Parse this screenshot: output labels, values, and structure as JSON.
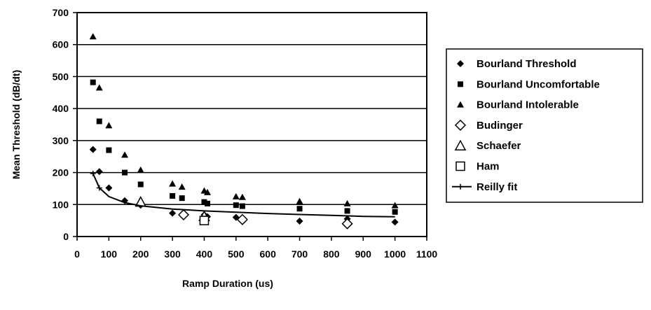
{
  "chart_data": {
    "type": "scatter",
    "title": "",
    "xlabel": "Ramp Duration (us)",
    "ylabel": "Mean Threshold (dB/dt)",
    "xlim": [
      0,
      1100
    ],
    "ylim": [
      0,
      700
    ],
    "x_ticks": [
      0,
      100,
      200,
      300,
      400,
      500,
      600,
      700,
      800,
      900,
      1000,
      1100
    ],
    "y_ticks": [
      0,
      100,
      200,
      300,
      400,
      500,
      600,
      700
    ],
    "grid": "horizontal",
    "legend_position": "right",
    "series": [
      {
        "name": "Bourland Threshold",
        "marker": "diamond-filled",
        "color": "#000000",
        "points": [
          [
            50,
            272
          ],
          [
            70,
            203
          ],
          [
            100,
            152
          ],
          [
            150,
            112
          ],
          [
            200,
            98
          ],
          [
            300,
            73
          ],
          [
            400,
            68
          ],
          [
            410,
            62
          ],
          [
            500,
            60
          ],
          [
            700,
            48
          ],
          [
            850,
            55
          ],
          [
            1000,
            45
          ]
        ]
      },
      {
        "name": "Bourland Uncomfortable",
        "marker": "square-filled",
        "color": "#000000",
        "points": [
          [
            50,
            482
          ],
          [
            70,
            360
          ],
          [
            100,
            270
          ],
          [
            150,
            200
          ],
          [
            200,
            163
          ],
          [
            300,
            127
          ],
          [
            330,
            120
          ],
          [
            400,
            108
          ],
          [
            410,
            103
          ],
          [
            500,
            98
          ],
          [
            520,
            95
          ],
          [
            700,
            87
          ],
          [
            850,
            80
          ],
          [
            1000,
            77
          ]
        ]
      },
      {
        "name": "Bourland Intolerable",
        "marker": "triangle-filled",
        "color": "#000000",
        "points": [
          [
            50,
            625
          ],
          [
            70,
            465
          ],
          [
            100,
            347
          ],
          [
            150,
            255
          ],
          [
            200,
            208
          ],
          [
            300,
            165
          ],
          [
            330,
            155
          ],
          [
            400,
            143
          ],
          [
            410,
            138
          ],
          [
            500,
            125
          ],
          [
            520,
            123
          ],
          [
            700,
            110
          ],
          [
            850,
            103
          ],
          [
            1000,
            97
          ]
        ]
      },
      {
        "name": "Budinger",
        "marker": "diamond-open",
        "color": "#000000",
        "points": [
          [
            335,
            68
          ],
          [
            520,
            53
          ],
          [
            850,
            40
          ]
        ]
      },
      {
        "name": "Schaefer",
        "marker": "triangle-open",
        "color": "#000000",
        "points": [
          [
            200,
            108
          ],
          [
            400,
            63
          ]
        ]
      },
      {
        "name": "Ham",
        "marker": "square-open",
        "color": "#000000",
        "points": [
          [
            400,
            50
          ]
        ]
      },
      {
        "name": "Reilly fit",
        "marker": "line-plus",
        "color": "#000000",
        "points": [
          [
            50,
            197
          ],
          [
            70,
            152
          ],
          [
            100,
            125
          ],
          [
            150,
            106
          ],
          [
            200,
            96
          ],
          [
            300,
            86
          ],
          [
            400,
            80
          ],
          [
            500,
            76
          ],
          [
            600,
            72
          ],
          [
            700,
            69
          ],
          [
            800,
            66
          ],
          [
            900,
            63
          ],
          [
            1000,
            62
          ]
        ]
      }
    ]
  }
}
